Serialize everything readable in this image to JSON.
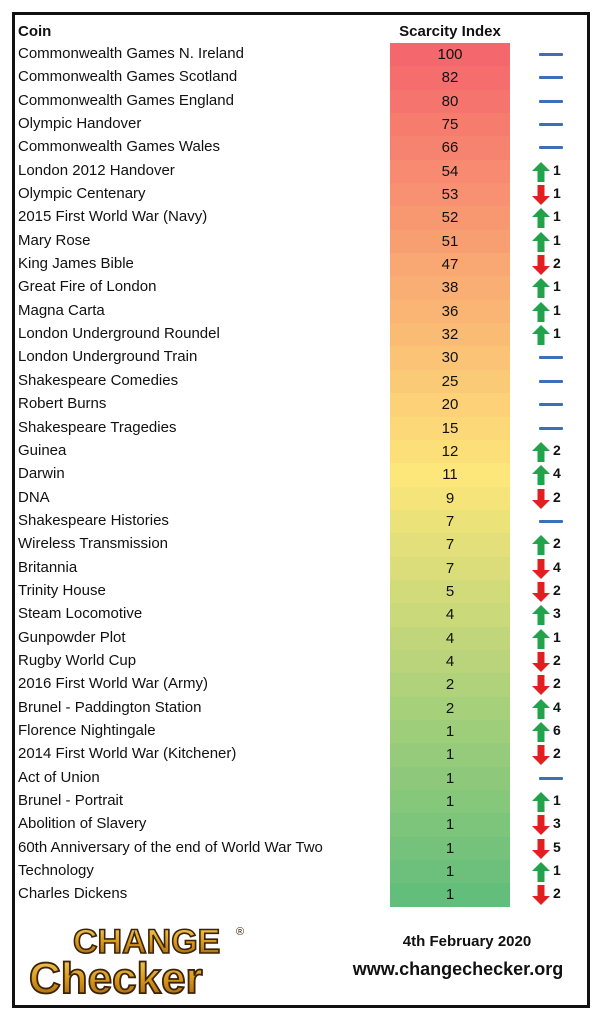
{
  "header": {
    "coin_label": "Coin",
    "score_label": "Scarcity Index"
  },
  "colors": {
    "up": "#21a24b",
    "down": "#e02020",
    "flat": "#3d6fb8",
    "score_high": "#f4676c",
    "score_mid": "#fde67a",
    "score_low": "#63be7b"
  },
  "rows": [
    {
      "name": "Commonwealth Games N. Ireland",
      "score": "100",
      "dir": "flat",
      "change": ""
    },
    {
      "name": "Commonwealth Games Scotland",
      "score": "82",
      "dir": "flat",
      "change": ""
    },
    {
      "name": "Commonwealth Games England",
      "score": "80",
      "dir": "flat",
      "change": ""
    },
    {
      "name": "Olympic Handover",
      "score": "75",
      "dir": "flat",
      "change": ""
    },
    {
      "name": "Commonwealth Games Wales",
      "score": "66",
      "dir": "flat",
      "change": ""
    },
    {
      "name": "London 2012 Handover",
      "score": "54",
      "dir": "up",
      "change": "1"
    },
    {
      "name": "Olympic Centenary",
      "score": "53",
      "dir": "down",
      "change": "1"
    },
    {
      "name": "2015 First World War (Navy)",
      "score": "52",
      "dir": "up",
      "change": "1"
    },
    {
      "name": "Mary Rose",
      "score": "51",
      "dir": "up",
      "change": "1"
    },
    {
      "name": "King James Bible",
      "score": "47",
      "dir": "down",
      "change": "2"
    },
    {
      "name": "Great Fire of London",
      "score": "38",
      "dir": "up",
      "change": "1"
    },
    {
      "name": "Magna Carta",
      "score": "36",
      "dir": "up",
      "change": "1"
    },
    {
      "name": "London Underground Roundel",
      "score": "32",
      "dir": "up",
      "change": "1"
    },
    {
      "name": "London Underground Train",
      "score": "30",
      "dir": "flat",
      "change": ""
    },
    {
      "name": "Shakespeare Comedies",
      "score": "25",
      "dir": "flat",
      "change": ""
    },
    {
      "name": "Robert Burns",
      "score": "20",
      "dir": "flat",
      "change": ""
    },
    {
      "name": "Shakespeare Tragedies",
      "score": "15",
      "dir": "flat",
      "change": ""
    },
    {
      "name": "Guinea",
      "score": "12",
      "dir": "up",
      "change": "2"
    },
    {
      "name": "Darwin",
      "score": "11",
      "dir": "up",
      "change": "4"
    },
    {
      "name": "DNA",
      "score": "9",
      "dir": "down",
      "change": "2"
    },
    {
      "name": "Shakespeare Histories",
      "score": "7",
      "dir": "flat",
      "change": ""
    },
    {
      "name": "Wireless Transmission",
      "score": "7",
      "dir": "up",
      "change": "2"
    },
    {
      "name": "Britannia",
      "score": "7",
      "dir": "down",
      "change": "4"
    },
    {
      "name": "Trinity House",
      "score": "5",
      "dir": "down",
      "change": "2"
    },
    {
      "name": "Steam Locomotive",
      "score": "4",
      "dir": "up",
      "change": "3"
    },
    {
      "name": "Gunpowder Plot",
      "score": "4",
      "dir": "up",
      "change": "1"
    },
    {
      "name": "Rugby World Cup",
      "score": "4",
      "dir": "down",
      "change": "2"
    },
    {
      "name": "2016 First World War (Army)",
      "score": "2",
      "dir": "down",
      "change": "2"
    },
    {
      "name": "Brunel - Paddington Station",
      "score": "2",
      "dir": "up",
      "change": "4"
    },
    {
      "name": "Florence Nightingale",
      "score": "1",
      "dir": "up",
      "change": "6"
    },
    {
      "name": "2014 First World War (Kitchener)",
      "score": "1",
      "dir": "down",
      "change": "2"
    },
    {
      "name": "Act of Union",
      "score": "1",
      "dir": "flat",
      "change": ""
    },
    {
      "name": "Brunel - Portrait",
      "score": "1",
      "dir": "up",
      "change": "1"
    },
    {
      "name": "Abolition of Slavery",
      "score": "1",
      "dir": "down",
      "change": "3"
    },
    {
      "name": "60th Anniversary of the end of World War Two",
      "score": "1",
      "dir": "down",
      "change": "5"
    },
    {
      "name": "Technology",
      "score": "1",
      "dir": "up",
      "change": "1"
    },
    {
      "name": "Charles Dickens",
      "score": "1",
      "dir": "down",
      "change": "2"
    }
  ],
  "footer": {
    "logo_line1": "CHANGE",
    "logo_line2": "Checker",
    "registered_mark": "®",
    "date": "4th February 2020",
    "website": "www.changechecker.org"
  }
}
